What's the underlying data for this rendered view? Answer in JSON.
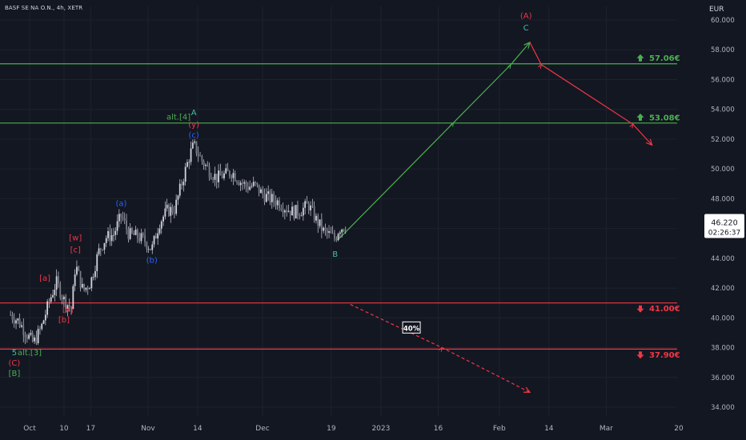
{
  "header": {
    "symbol_title": "BASF SE NA O.N., 4h, XETR"
  },
  "price_axis": {
    "currency": "EUR"
  },
  "current_price": {
    "value": "46.220",
    "countdown": "02:26:37"
  },
  "chart_data": {
    "type": "candlestick",
    "title": "BASF SE NA O.N., 4h, XETR",
    "y_unit": "EUR",
    "ylim": [
      33.5,
      61.0
    ],
    "y_ticks": [
      34,
      36,
      38,
      40,
      42,
      44,
      46,
      48,
      50,
      52,
      54,
      56,
      58,
      60
    ],
    "y_tick_labels": [
      "34.000",
      "36.000",
      "38.000",
      "40.000",
      "42.000",
      "44.000",
      "46.000",
      "48.000",
      "50.000",
      "52.000",
      "54.000",
      "56.000",
      "58.000",
      "60.000"
    ],
    "x_ticks": [
      {
        "label": "Oct",
        "date": "2022-10-01"
      },
      {
        "label": "10",
        "date": "2022-10-10"
      },
      {
        "label": "17",
        "date": "2022-10-17"
      },
      {
        "label": "Nov",
        "date": "2022-11-01"
      },
      {
        "label": "14",
        "date": "2022-11-14"
      },
      {
        "label": "Dec",
        "date": "2022-12-01"
      },
      {
        "label": "19",
        "date": "2022-12-19"
      },
      {
        "label": "2023",
        "date": "2023-01-01"
      },
      {
        "label": "16",
        "date": "2023-01-16"
      },
      {
        "label": "Feb",
        "date": "2023-02-01"
      },
      {
        "label": "14",
        "date": "2023-02-14"
      },
      {
        "label": "Mar",
        "date": "2023-03-01"
      },
      {
        "label": "20",
        "date": "2023-03-20"
      }
    ],
    "price_path": [
      [
        "2022-09-26",
        40.2
      ],
      [
        "2022-09-28",
        39.8
      ],
      [
        "2022-09-30",
        39.0
      ],
      [
        "2022-10-02",
        38.3
      ],
      [
        "2022-10-04",
        39.3
      ],
      [
        "2022-10-06",
        41.0
      ],
      [
        "2022-10-08",
        42.4
      ],
      [
        "2022-10-10",
        41.2
      ],
      [
        "2022-10-12",
        40.6
      ],
      [
        "2022-10-13",
        43.6
      ],
      [
        "2022-10-15",
        41.8
      ],
      [
        "2022-10-17",
        42.4
      ],
      [
        "2022-10-19",
        44.4
      ],
      [
        "2022-10-21",
        45.4
      ],
      [
        "2022-10-23",
        45.6
      ],
      [
        "2022-10-25",
        46.9
      ],
      [
        "2022-10-27",
        45.6
      ],
      [
        "2022-10-29",
        45.5
      ],
      [
        "2022-10-31",
        45.2
      ],
      [
        "2022-11-02",
        44.6
      ],
      [
        "2022-11-04",
        46.4
      ],
      [
        "2022-11-06",
        47.2
      ],
      [
        "2022-11-08",
        47.3
      ],
      [
        "2022-11-10",
        49.2
      ],
      [
        "2022-11-12",
        51.0
      ],
      [
        "2022-11-13",
        51.6
      ],
      [
        "2022-11-15",
        50.6
      ],
      [
        "2022-11-17",
        49.9
      ],
      [
        "2022-11-19",
        49.4
      ],
      [
        "2022-11-21",
        49.6
      ],
      [
        "2022-11-23",
        49.8
      ],
      [
        "2022-11-25",
        49.2
      ],
      [
        "2022-11-27",
        48.8
      ],
      [
        "2022-11-29",
        48.9
      ],
      [
        "2022-12-01",
        48.3
      ],
      [
        "2022-12-03",
        48.0
      ],
      [
        "2022-12-05",
        47.8
      ],
      [
        "2022-12-07",
        47.4
      ],
      [
        "2022-12-09",
        47.1
      ],
      [
        "2022-12-11",
        47.2
      ],
      [
        "2022-12-13",
        47.6
      ],
      [
        "2022-12-15",
        46.6
      ],
      [
        "2022-12-17",
        45.8
      ],
      [
        "2022-12-19",
        45.5
      ],
      [
        "2022-12-20",
        45.3
      ],
      [
        "2022-12-21",
        46.0
      ],
      [
        "2022-12-23",
        46.2
      ]
    ],
    "horizontal_levels": [
      {
        "price": 57.06,
        "label": "57.06€",
        "color": "#4caf50",
        "arrow": "up"
      },
      {
        "price": 53.08,
        "label": "53.08€",
        "color": "#4caf50",
        "arrow": "up"
      },
      {
        "price": 41.0,
        "label": "41.00€",
        "color": "#f23645",
        "arrow": "down"
      },
      {
        "price": 37.9,
        "label": "37.90€",
        "color": "#f23645",
        "arrow": "down"
      }
    ],
    "projections": [
      {
        "color": "#4caf50",
        "style": "solid",
        "points": [
          [
            "2022-12-21",
            45.3
          ],
          [
            "2023-01-20",
            53.1
          ],
          [
            "2023-02-04",
            57.0
          ],
          [
            "2023-02-09",
            58.5
          ]
        ]
      },
      {
        "color": "#f23645",
        "style": "solid",
        "points": [
          [
            "2023-02-09",
            58.5
          ],
          [
            "2023-02-12",
            57.0
          ],
          [
            "2023-03-08",
            53.0
          ],
          [
            "2023-03-13",
            51.6
          ]
        ]
      },
      {
        "color": "#f23645",
        "style": "dashed",
        "points": [
          [
            "2022-12-24",
            40.9
          ],
          [
            "2023-01-17",
            38.0
          ],
          [
            "2023-02-09",
            35.0
          ]
        ]
      }
    ],
    "annotations": [
      {
        "text": "5",
        "date": "2022-09-27",
        "price": 37.5,
        "color": "#42bda8"
      },
      {
        "text": "alt.[3]",
        "date": "2022-10-01",
        "price": 37.5,
        "color": "#4caf50"
      },
      {
        "text": "(C)",
        "date": "2022-09-27",
        "price": 36.8,
        "color": "#f23645"
      },
      {
        "text": "[B]",
        "date": "2022-09-27",
        "price": 36.1,
        "color": "#4caf50"
      },
      {
        "text": "[a]",
        "date": "2022-10-05",
        "price": 42.5,
        "color": "#f23645"
      },
      {
        "text": "[x]",
        "date": "2022-10-11",
        "price": 40.4,
        "color": "#f23645"
      },
      {
        "text": "[b]",
        "date": "2022-10-10",
        "price": 39.7,
        "color": "#f23645"
      },
      {
        "text": "[w]",
        "date": "2022-10-13",
        "price": 45.2,
        "color": "#f23645"
      },
      {
        "text": "[c]",
        "date": "2022-10-13",
        "price": 44.4,
        "color": "#f23645"
      },
      {
        "text": "(a)",
        "date": "2022-10-25",
        "price": 47.5,
        "color": "#2962ff"
      },
      {
        "text": "(b)",
        "date": "2022-11-02",
        "price": 43.7,
        "color": "#2962ff"
      },
      {
        "text": "alt.[4]",
        "date": "2022-11-09",
        "price": 53.3,
        "color": "#4caf50"
      },
      {
        "text": "A",
        "date": "2022-11-13",
        "price": 53.6,
        "color": "#42bda8"
      },
      {
        "text": "(y)",
        "date": "2022-11-13",
        "price": 52.8,
        "color": "#f23645"
      },
      {
        "text": "(c)",
        "date": "2022-11-13",
        "price": 52.1,
        "color": "#2962ff"
      },
      {
        "text": "B",
        "date": "2022-12-20",
        "price": 44.1,
        "color": "#42bda8"
      },
      {
        "text": "(A)",
        "date": "2023-02-08",
        "price": 60.1,
        "color": "#f23645"
      },
      {
        "text": "C",
        "date": "2023-02-08",
        "price": 59.3,
        "color": "#42bda8"
      }
    ],
    "probability_box": {
      "text": "40%",
      "date": "2023-01-09",
      "price": 39.3
    }
  }
}
